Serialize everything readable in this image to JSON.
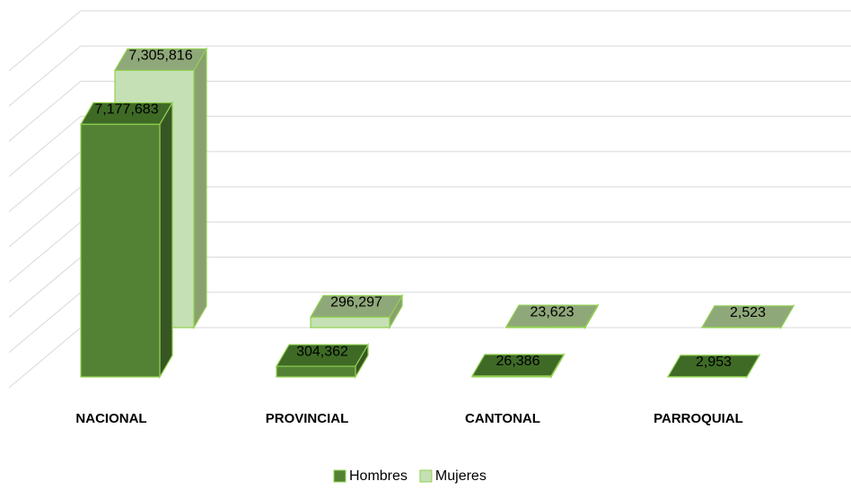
{
  "chart_data": {
    "type": "bar3d",
    "categories": [
      "NACIONAL",
      "PROVINCIAL",
      "CANTONAL",
      "PARROQUIAL"
    ],
    "series": [
      {
        "name": "Hombres",
        "color": "#548235",
        "values": [
          7177683,
          304362,
          26386,
          2953
        ],
        "value_labels": [
          "7,177,683",
          "304,362",
          "26,386",
          "2,953"
        ]
      },
      {
        "name": "Mujeres",
        "color": "#c5e0b4",
        "values": [
          7305816,
          296297,
          23623,
          2523
        ],
        "value_labels": [
          "7,305,816",
          "296,297",
          "23,623",
          "2,523"
        ]
      }
    ],
    "ylim": [
      0,
      9000000
    ],
    "yticks": [
      0,
      1000000,
      2000000,
      3000000,
      4000000,
      5000000,
      6000000,
      7000000,
      8000000,
      9000000
    ],
    "grid": true,
    "legend": "bottom"
  }
}
